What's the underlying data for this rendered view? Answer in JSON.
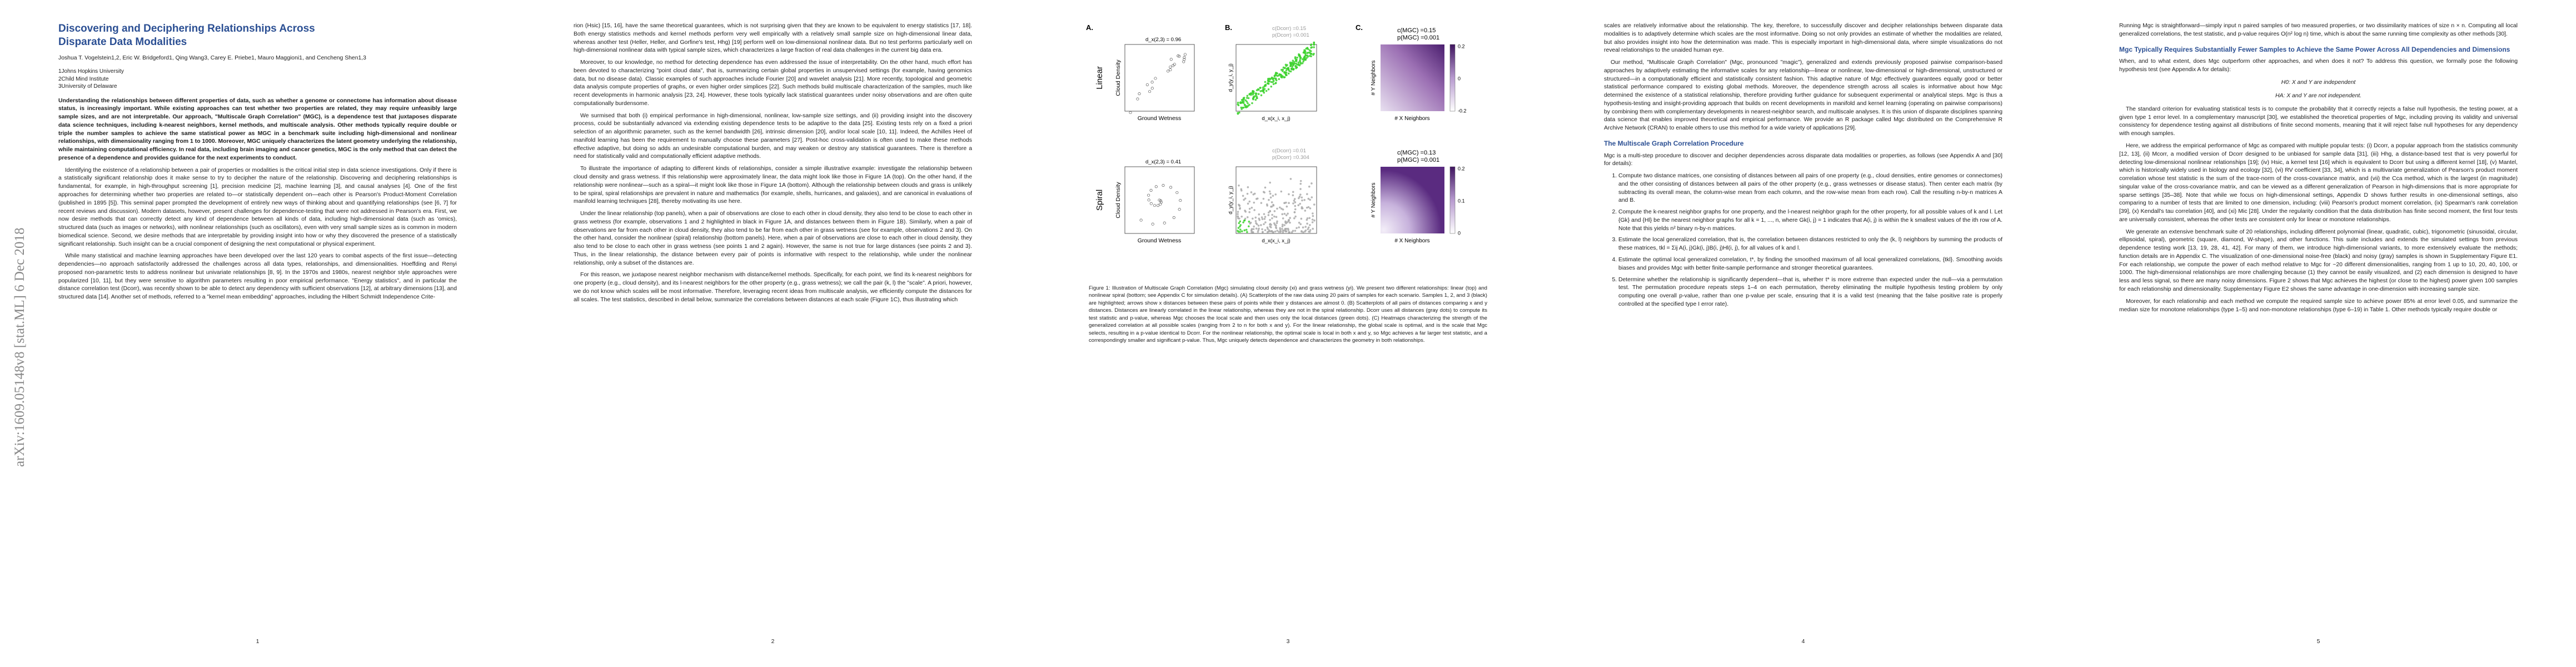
{
  "arxiv_stamp": "arXiv:1609.05148v8 [stat.ML] 6 Dec 2018",
  "pages": [
    {
      "title": "Discovering and Deciphering Relationships Across Disparate Data Modalities",
      "authors": "Joshua T. Vogelstein1,2, Eric W. Bridgeford1, Qing Wang3, Carey E. Priebe1, Mauro Maggioni1, and Cencheng Shen1,3",
      "affiliations": [
        "1Johns Hopkins University",
        "2Child Mind Institute",
        "3University of Delaware"
      ],
      "abstract": "Understanding the relationships between different properties of data, such as whether a genome or connectome has information about disease status, is increasingly important. While existing approaches can test whether two properties are related, they may require unfeasibly large sample sizes, and are not interpretable. Our approach, \"Multiscale Graph Correlation\" (MGC), is a dependence test that juxtaposes disparate data science techniques, including k-nearest neighbors, kernel methods, and multiscale analysis. Other methods typically require double or triple the number samples to achieve the same statistical power as MGC in a benchmark suite including high-dimensional and nonlinear relationships, with dimensionality ranging from 1 to 1000. Moreover, MGC uniquely characterizes the latent geometry underlying the relationship, while maintaining computational efficiency. In real data, including brain imaging and cancer genetics, MGC is the only method that can detect the presence of a dependence and provides guidance for the next experiments to conduct.",
      "paragraphs": [
        "Identifying the existence of a relationship between a pair of properties or modalities is the critical initial step in data science investigations. Only if there is a statistically significant relationship does it make sense to try to decipher the nature of the relationship. Discovering and deciphering relationships is fundamental, for example, in high-throughput screening [1], precision medicine [2], machine learning [3], and causal analyses [4]. One of the first approaches for determining whether two properties are related to—or statistically dependent on—each other is Pearson's Product-Moment Correlation (published in 1895 [5]). This seminal paper prompted the development of entirely new ways of thinking about and quantifying relationships (see [6, 7] for recent reviews and discussion). Modern datasets, however, present challenges for dependence-testing that were not addressed in Pearson's era. First, we now desire methods that can correctly detect any kind of dependence between all kinds of data, including high-dimensional data (such as 'omics), structured data (such as images or networks), with nonlinear relationships (such as oscillators), even with very small sample sizes as is common in modern biomedical science. Second, we desire methods that are interpretable by providing insight into how or why they discovered the presence of a statistically significant relationship. Such insight can be a crucial component of designing the next computational or physical experiment.",
        "While many statistical and machine learning approaches have been developed over the last 120 years to combat aspects of the first issue—detecting dependencies—no approach satisfactorily addressed the challenges across all data types, relationships, and dimensionalities. Hoeffding and Renyi proposed non-parametric tests to address nonlinear but univariate relationships [8, 9]. In the 1970s and 1980s, nearest neighbor style approaches were popularized [10, 11], but they were sensitive to algorithm parameters resulting in poor empirical performance. \"Energy statistics\", and in particular the distance correlation test (Dcorr), was recently shown to be able to detect any dependency with sufficient observations [12], at arbitrary dimensions [13], and structured data [14]. Another set of methods, referred to a \"kernel mean embedding\" approaches, including the Hilbert Schmidt Independence Crite-"
      ],
      "page_number": "1"
    },
    {
      "paragraphs": [
        "rion (Hsic) [15, 16], have the same theoretical guarantees, which is not surprising given that they are known to be equivalent to energy statistics [17, 18]. Both energy statistics methods and kernel methods perform very well empirically with a relatively small sample size on high-dimensional linear data, whereas another test (Heller, Heller, and Gorfine's test, Hhg) [19] perform well on low-dimensional nonlinear data. But no test performs particularly well on high-dimensional nonlinear data with typical sample sizes, which characterizes a large fraction of real data challenges in the current big data era.",
        "Moreover, to our knowledge, no method for detecting dependence has even addressed the issue of interpretability. On the other hand, much effort has been devoted to characterizing \"point cloud data\", that is, summarizing certain global properties in unsupervised settings (for example, having genomics data, but no disease data). Classic examples of such approaches include Fourier [20] and wavelet analysis [21]. More recently, topological and geometric data analysis compute properties of graphs, or even higher order simplices [22]. Such methods build multiscale characterization of the samples, much like recent developments in harmonic analysis [23, 24]. However, these tools typically lack statistical guarantees under noisy observations and are often quite computationally burdensome.",
        "We surmised that both (i) empirical performance in high-dimensional, nonlinear, low-sample size settings, and (ii) providing insight into the discovery process, could be substantially advanced via extending existing dependence tests to be adaptive to the data [25]. Existing tests rely on a fixed a priori selection of an algorithmic parameter, such as the kernel bandwidth [26], intrinsic dimension [20], and/or local scale [10, 11]. Indeed, the Achilles Heel of manifold learning has been the requirement to manually choose these parameters [27]. Post-hoc cross-validation is often used to make these methods effective adaptive, but doing so adds an undesirable computational burden, and may weaken or destroy any statistical guarantees. There is therefore a need for statistically valid and computationally efficient adaptive methods.",
        "To illustrate the importance of adapting to different kinds of relationships, consider a simple illustrative example: investigate the relationship between cloud density and grass wetness. If this relationship were approximately linear, the data might look like those in Figure 1A (top). On the other hand, if the relationship were nonlinear—such as a spiral—it might look like those in Figure 1A (bottom). Although the relationship between clouds and grass is unlikely to be spiral, spiral relationships are prevalent in nature and mathematics (for example, shells, hurricanes, and galaxies), and are canonical in evaluations of manifold learning techniques [28], thereby motivating its use here.",
        "Under the linear relationship (top panels), when a pair of observations are close to each other in cloud density, they also tend to be close to each other in grass wetness (for example, observations 1 and 2 highlighted in black in Figure 1A, and distances between them in Figure 1B). Similarly, when a pair of observations are far from each other in cloud density, they also tend to be far from each other in grass wetness (see for example, observations 2 and 3). On the other hand, consider the nonlinear (spiral) relationship (bottom panels). Here, when a pair of observations are close to each other in cloud density, they also tend to be close to each other in grass wetness (see points 1 and 2 again). However, the same is not true for large distances (see points 2 and 3). Thus, in the linear relationship, the distance between every pair of points is informative with respect to the relationship, while under the nonlinear relationship, only a subset of the distances are.",
        "For this reason, we juxtapose nearest neighbor mechanism with distance/kernel methods. Specifically, for each point, we find its k-nearest neighbors for one property (e.g., cloud density), and its l-nearest neighbors for the other property (e.g., grass wetness); we call the pair (k, l) the \"scale\". A priori, however, we do not know which scales will be most informative. Therefore, leveraging recent ideas from multiscale analysis, we efficiently compute the distances for all scales. The test statistics, described in detail below, summarize the correlations between distances at each scale (Figure 1C), thus illustrating which"
      ],
      "page_number": "2"
    },
    {
      "figure": {
        "panels": [
          "A.",
          "B.",
          "C."
        ],
        "y_label": "Cloud Density",
        "x_label": "Ground Wetness",
        "dist_x_label": "d_x(x_i, x_j)",
        "dist_y_label": "d_y(y_i, y_j)",
        "heat_x_label": "# X Neighbors",
        "heat_y_label": "# Y Neighbors",
        "rows": [
          {
            "label": "Linear",
            "distance": "d_x(2,3) = 0.96",
            "dcorr_c": "c(Dcorr) =0.15",
            "dcorr_p": "p(Dcorr) =0.001",
            "mgc_c": "c(MGC) =0.15",
            "mgc_p": "p(MGC) =0.001",
            "colorbar_ticks": [
              "0.2",
              "0",
              "-0.2"
            ]
          },
          {
            "label": "Spiral",
            "distance": "d_x(2,3) = 0.41",
            "dcorr_c": "c(Dcorr) =0.01",
            "dcorr_p": "p(Dcorr) =0.304",
            "mgc_c": "c(MGC) =0.13",
            "mgc_p": "p(MGC) =0.001",
            "colorbar_ticks": [
              "0.2",
              "0.1",
              "0"
            ]
          }
        ]
      },
      "caption": "Figure 1: Illustration of Multiscale Graph Correlation (Mgc) simulating cloud density (xi) and grass wetness (yi). We present two different relationships: linear (top) and nonlinear spiral (bottom; see Appendix C for simulation details). (A) Scatterplots of the raw data using 20 pairs of samples for each scenario. Samples 1, 2, and 3 (black) are highlighted; arrows show x distances between these pairs of points while their y distances are almost 0. (B) Scatterplots of all pairs of distances comparing x and y distances. Distances are linearly correlated in the linear relationship, whereas they are not in the spiral relationship. Dcorr uses all distances (gray dots) to compute its test statistic and p-value, whereas Mgc chooses the local scale and then uses only the local distances (green dots). (C) Heatmaps characterizing the strength of the generalized correlation at all possible scales (ranging from 2 to n for both x and y). For the linear relationship, the global scale is optimal, and is the scale that Mgc selects, resulting in a p-value identical to Dcorr. For the nonlinear relationship, the optimal scale is local in both x and y, so Mgc achieves a far larger test statistic, and a correspondingly smaller and significant p-value. Thus, Mgc uniquely detects dependence and characterizes the geometry in both relationships.",
      "page_number": "3"
    },
    {
      "paragraphs": [
        "scales are relatively informative about the relationship. The key, therefore, to successfully discover and decipher relationships between disparate data modalities is to adaptively determine which scales are the most informative. Doing so not only provides an estimate of whether the modalities are related, but also provides insight into how the determination was made. This is especially important in high-dimensional data, where simple visualizations do not reveal relationships to the unaided human eye.",
        "Our method, \"Multiscale Graph Correlation\" (Mgc, pronounced \"magic\"), generalized and extends previously proposed pairwise comparison-based approaches by adaptively estimating the informative scales for any relationship—linear or nonlinear, low-dimensional or high-dimensional, unstructured or structured—in a computationally efficient and statistically consistent fashion. This adaptive nature of Mgc effectively guarantees equally good or better statistical performance compared to existing global methods. Moreover, the dependence strength across all scales is informative about how Mgc determined the existence of a statistical relationship, therefore providing further guidance for subsequent experimental or analytical steps. Mgc is thus a hypothesis-testing and insight-providing approach that builds on recent developments in manifold and kernel learning (operating on pairwise comparisons) by combining them with complementary developments in nearest-neighbor search, and multiscale analyses. It is this union of disparate disciplines spanning data science that enables improved theoretical and empirical performance. We provide an R package called Mgc distributed on the Comprehensive R Archive Network (CRAN) to enable others to use this method for a wide variety of applications [29]."
      ],
      "heading": "The Multiscale Graph Correlation Procedure",
      "intro": "Mgc is a multi-step procedure to discover and decipher dependencies across disparate data modalities or properties, as follows (see Appendix A and [30] for details):",
      "steps": [
        "Compute two distance matrices, one consisting of distances between all pairs of one property (e.g., cloud densities, entire genomes or connectomes) and the other consisting of distances between all pairs of the other property (e.g., grass wetnesses or disease status). Then center each matrix (by subtracting its overall mean, the column-wise mean from each column, and the row-wise mean from each row). Call the resulting n-by-n matrices A and B.",
        "Compute the k-nearest neighbor graphs for one property, and the l-nearest neighbor graph for the other property, for all possible values of k and l. Let {Gk} and {Hl} be the nearest neighbor graphs for all k = 1, ..., n, where Gk(i, j) = 1 indicates that A(i, j) is within the k smallest values of the ith row of A. Note that this yields n² binary n-by-n matrices.",
        "Estimate the local generalized correlation, that is, the correlation between distances restricted to only the (k, l) neighbors by summing the products of these matrices, tkl = Σij A(i, j)Gk(i, j)B(i, j)Hl(i, j), for all values of k and l.",
        "Estimate the optimal local generalized correlation, t*, by finding the smoothed maximum of all local generalized correlations, {tkl}. Smoothing avoids biases and provides Mgc with better finite-sample performance and stronger theoretical guarantees.",
        "Determine whether the relationship is significantly dependent—that is, whether t* is more extreme than expected under the null—via a permutation test. The permutation procedure repeats steps 1–4 on each permutation, thereby eliminating the multiple hypothesis testing problem by only computing one overall p-value, rather than one p-value per scale, ensuring that it is a valid test (meaning that the false positive rate is properly controlled at the specified type I error rate)."
      ],
      "page_number": "4"
    },
    {
      "intro": "Running Mgc is straightforward—simply input n paired samples of two measured properties, or two dissimilarity matrices of size n × n. Computing all local generalized correlations, the test statistic, and p-value requires O(n² log n) time, which is about the same running time complexity as other methods [30].",
      "heading": "Mgc Typically Requires Substantially Fewer Samples to Achieve the Same Power Across All Dependencies and Dimensions",
      "question": "When, and to what extent, does Mgc outperform other approaches, and when does it not? To address this question, we formally pose the following hypothesis test (see Appendix A for details):",
      "hypotheses": [
        "H0: X and Y are independent",
        "HA: X and Y are not independent."
      ],
      "paragraphs": [
        "The standard criterion for evaluating statistical tests is to compute the probability that it correctly rejects a false null hypothesis, the testing power, at a given type 1 error level. In a complementary manuscript [30], we established the theoretical properties of Mgc, including proving its validity and universal consistency for dependence testing against all distributions of finite second moments, meaning that it will reject false null hypotheses for any dependency with enough samples.",
        "Here, we address the empirical performance of Mgc as compared with multiple popular tests: (i) Dcorr, a popular approach from the statistics community [12, 13], (ii) Mcorr, a modified version of Dcorr designed to be unbiased for sample data [31], (iii) Hhg, a distance-based test that is very powerful for detecting low-dimensional nonlinear relationships [19]; (iv) Hsic, a kernel test [16] which is equivalent to Dcorr but using a different kernel [18], (v) Mantel, which is historically widely used in biology and ecology [32], (vi) RV coefficient [33, 34], which is a multivariate generalization of Pearson's product moment correlation whose test statistic is the sum of the trace-norm of the cross-covariance matrix, and (vii) the Cca method, which is the largest (in magnitude) singular value of the cross-covariance matrix, and can be viewed as a different generalization of Pearson in high-dimensions that is more appropriate for sparse settings [35–38]. Note that while we focus on high-dimensional settings, Appendix D shows further results in one-dimensional settings, also comparing to a number of tests that are limited to one dimension, including: (viii) Pearson's product moment correlation, (ix) Spearman's rank correlation [39], (x) Kendall's tau correlation [40], and (xi) Mic [28]. Under the regularity condition that the data distribution has finite second moment, the first four tests are universally consistent, whereas the other tests are consistent only for linear or monotone relationships.",
        "We generate an extensive benchmark suite of 20 relationships, including different polynomial (linear, quadratic, cubic), trigonometric (sinusoidal, circular, ellipsoidal, spiral), geometric (square, diamond, W-shape), and other functions. This suite includes and extends the simulated settings from previous dependence testing work [13, 19, 28, 41, 42]. For many of them, we introduce high-dimensional variants, to more extensively evaluate the methods; function details are in Appendix C. The visualization of one-dimensional noise-free (black) and noisy (gray) samples is shown in Supplementary Figure E1. For each relationship, we compute the power of each method relative to Mgc for ~20 different dimensionalities, ranging from 1 up to 10, 20, 40, 100, or 1000. The high-dimensional relationships are more challenging because (1) they cannot be easily visualized, and (2) each dimension is designed to have less and less signal, so there are many noisy dimensions. Figure 2 shows that Mgc achieves the highest (or close to the highest) power given 100 samples for each relationship and dimensionality. Supplementary Figure E2 shows the same advantage in one-dimension with increasing sample size.",
        "Moreover, for each relationship and each method we compute the required sample size to achieve power 85% at error level 0.05, and summarize the median size for monotone relationships (type 1–5) and non-monotone relationships (type 6–19) in Table 1. Other methods typically require double or"
      ],
      "page_number": "5"
    }
  ]
}
